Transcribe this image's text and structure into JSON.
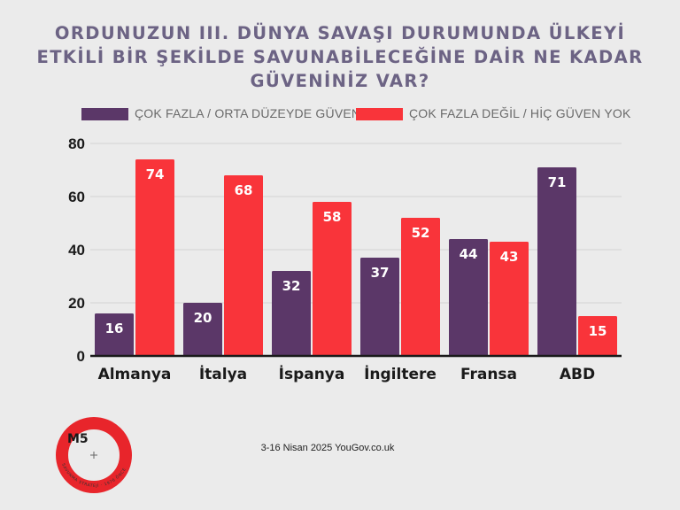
{
  "title": "ORDUNUZUN III. DÜNYA SAVAŞI DURUMUNDA ÜLKEYİ ETKİLİ BİR ŞEKİLDE SAVUNABİLECEĞİNE DAİR NE KADAR GÜVENİNİZ VAR?",
  "source": "3-16 Nisan 2025 YouGov.co.uk",
  "logo": {
    "text": "M5",
    "ring_text": "SAVUNMA STRATEJİ · 1976 ÖNCE 1981",
    "color": "#e8252b"
  },
  "colors": {
    "series1": "#5b3768",
    "series2": "#f9343a",
    "axis": "#1a1a1a",
    "grid": "#d3d3d3",
    "title": "#6c6384"
  },
  "chart_data": {
    "type": "bar",
    "title": "ORDUNUZUN III. DÜNYA SAVAŞI DURUMUNDA ÜLKEYİ ETKİLİ BİR ŞEKİLDE SAVUNABİLECEĞİNE DAİR NE KADAR GÜVENİNİZ VAR?",
    "categories": [
      "Almanya",
      "İtalya",
      "İspanya",
      "İngiltere",
      "Fransa",
      "ABD"
    ],
    "series": [
      {
        "name": "ÇOK FAZLA / ORTA DÜZEYDE GÜVEN",
        "values": [
          16,
          20,
          32,
          37,
          44,
          71
        ]
      },
      {
        "name": "ÇOK FAZLA DEĞİL / HİÇ GÜVEN YOK",
        "values": [
          74,
          68,
          58,
          52,
          43,
          15
        ]
      }
    ],
    "ylim": [
      0,
      80
    ],
    "yticks": [
      0,
      20,
      40,
      60,
      80
    ],
    "grid": true,
    "legend": "top",
    "data_labels": true,
    "xlabel": "",
    "ylabel": ""
  }
}
